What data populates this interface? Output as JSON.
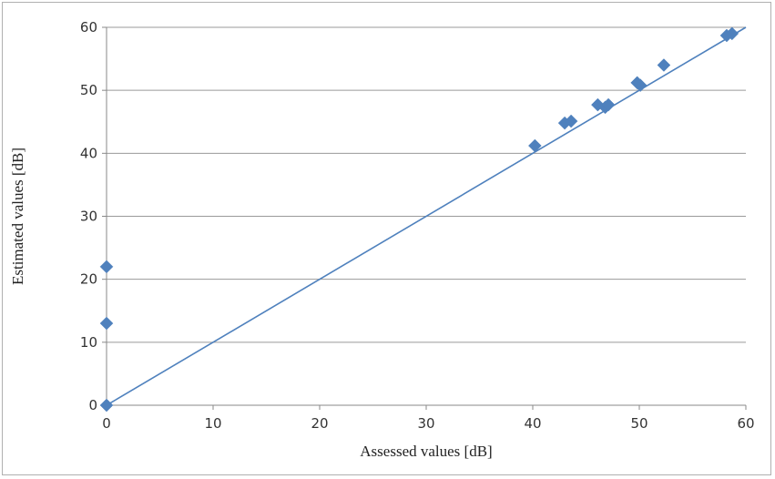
{
  "chart_data": {
    "type": "scatter",
    "xlabel": "Assessed values [dB]",
    "ylabel": "Estimated values [dB]",
    "xlim": [
      0,
      60
    ],
    "ylim": [
      0,
      60
    ],
    "xticks": [
      0,
      10,
      20,
      30,
      40,
      50,
      60
    ],
    "yticks": [
      0,
      10,
      20,
      30,
      40,
      50,
      60
    ],
    "grid": "horizontal",
    "series": [
      {
        "color": "#4f81bd",
        "marker": "diamond",
        "points": [
          {
            "x": 0,
            "y": 0
          },
          {
            "x": 0,
            "y": 13
          },
          {
            "x": 0,
            "y": 22
          },
          {
            "x": 40.2,
            "y": 41.2
          },
          {
            "x": 43,
            "y": 44.8
          },
          {
            "x": 43.6,
            "y": 45.1
          },
          {
            "x": 46.1,
            "y": 47.7
          },
          {
            "x": 46.8,
            "y": 47.3
          },
          {
            "x": 47.1,
            "y": 47.7
          },
          {
            "x": 49.8,
            "y": 51.2
          },
          {
            "x": 50.1,
            "y": 50.8
          },
          {
            "x": 52.3,
            "y": 54
          },
          {
            "x": 58.2,
            "y": 58.7
          },
          {
            "x": 58.7,
            "y": 59
          }
        ]
      }
    ],
    "reference_line": {
      "color": "#4f81bd",
      "from": [
        0,
        0
      ],
      "to": [
        60,
        60
      ]
    }
  }
}
